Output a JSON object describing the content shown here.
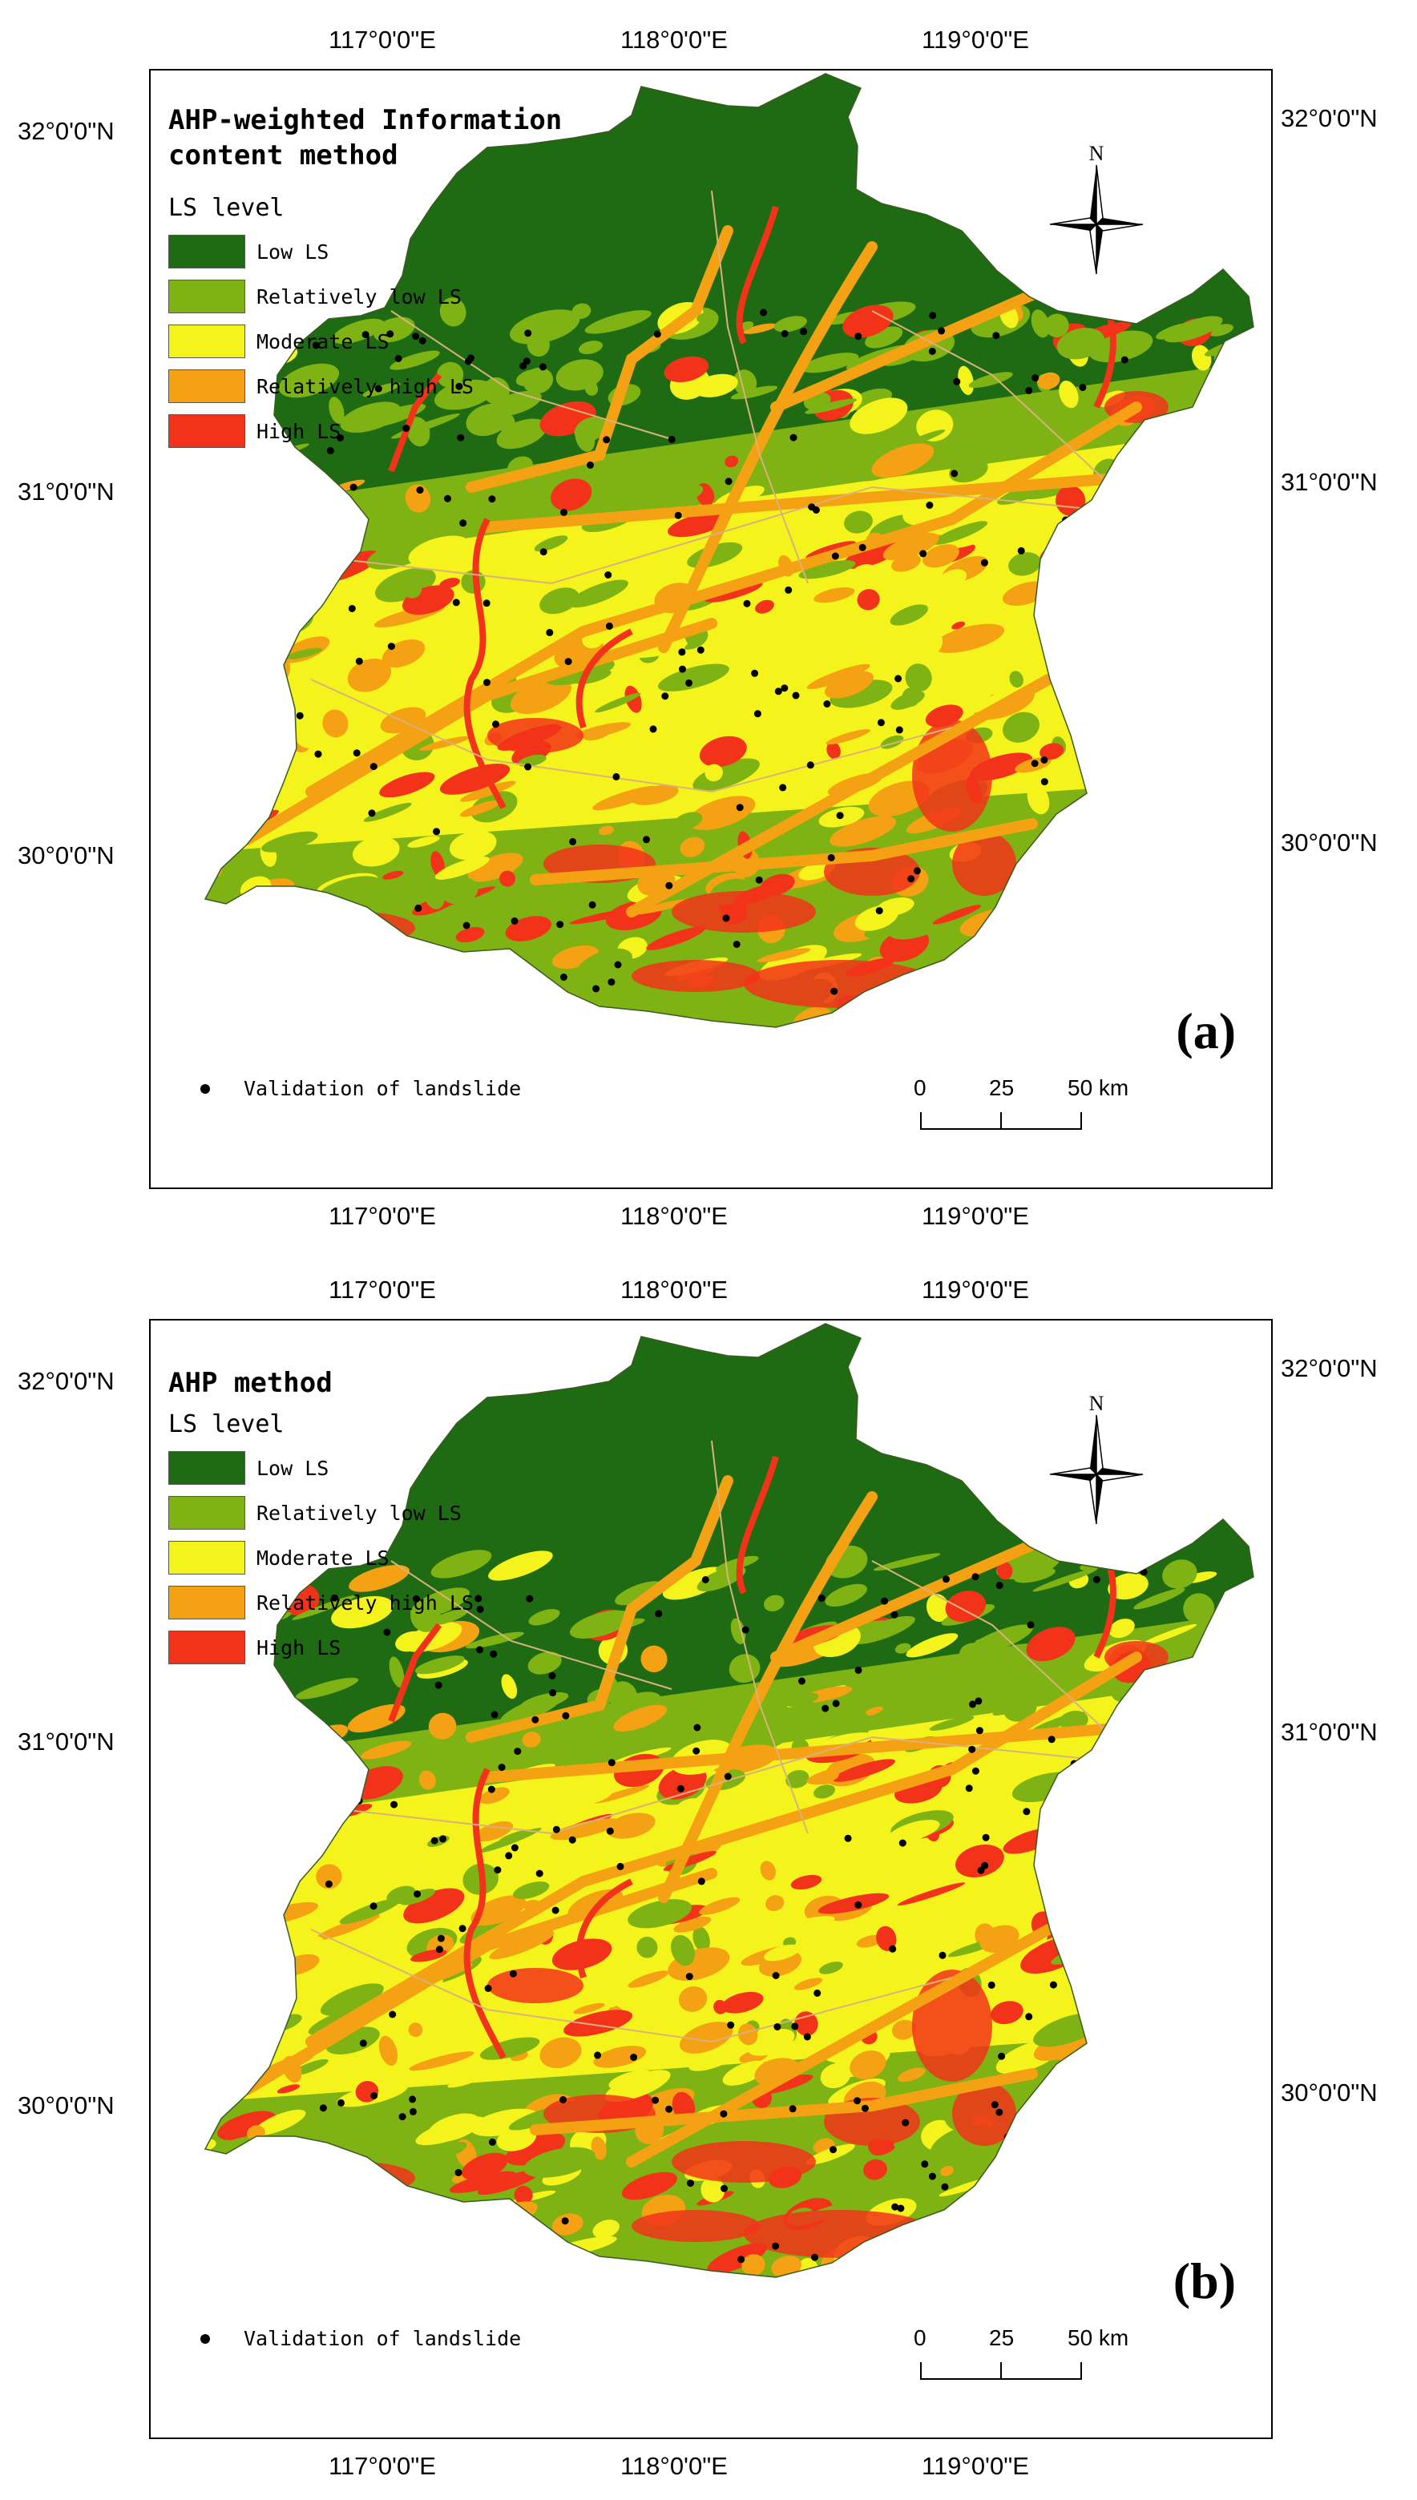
{
  "colors": {
    "low": "#1e6b14",
    "relatively_low": "#7fb314",
    "moderate": "#f4f41c",
    "relatively_high": "#f5a114",
    "high": "#f2331a",
    "validation_point": "#000000"
  },
  "axes": {
    "top_labels": [
      "117°0'0\"E",
      "118°0'0\"E",
      "119°0'0\"E"
    ],
    "bottom_labels": [
      "117°0'0\"E",
      "118°0'0\"E",
      "119°0'0\"E"
    ],
    "left_labels": [
      "32°0'0\"N",
      "31°0'0\"N",
      "30°0'0\"N"
    ],
    "right_labels": [
      "32°0'0\"N",
      "31°0'0\"N",
      "30°0'0\"N"
    ]
  },
  "legend": {
    "title": "LS level",
    "items": [
      {
        "label": "Low LS",
        "color": "#1e6b14"
      },
      {
        "label": "Relatively low LS",
        "color": "#7fb314"
      },
      {
        "label": "Moderate LS",
        "color": "#f4f41c"
      },
      {
        "label": "Relatively high LS",
        "color": "#f5a114"
      },
      {
        "label": "High LS",
        "color": "#f2331a"
      }
    ],
    "validation_label": "Validation of  landslide"
  },
  "north_arrow": {
    "label": "N",
    "icon": "north-arrow-icon"
  },
  "scalebar": {
    "labels": [
      "0",
      "25",
      "50 km"
    ]
  },
  "panels": [
    {
      "id": "a",
      "title": "AHP-weighted Information content method",
      "label": "(a)"
    },
    {
      "id": "b",
      "title": "AHP method",
      "label": "(b)"
    }
  ]
}
